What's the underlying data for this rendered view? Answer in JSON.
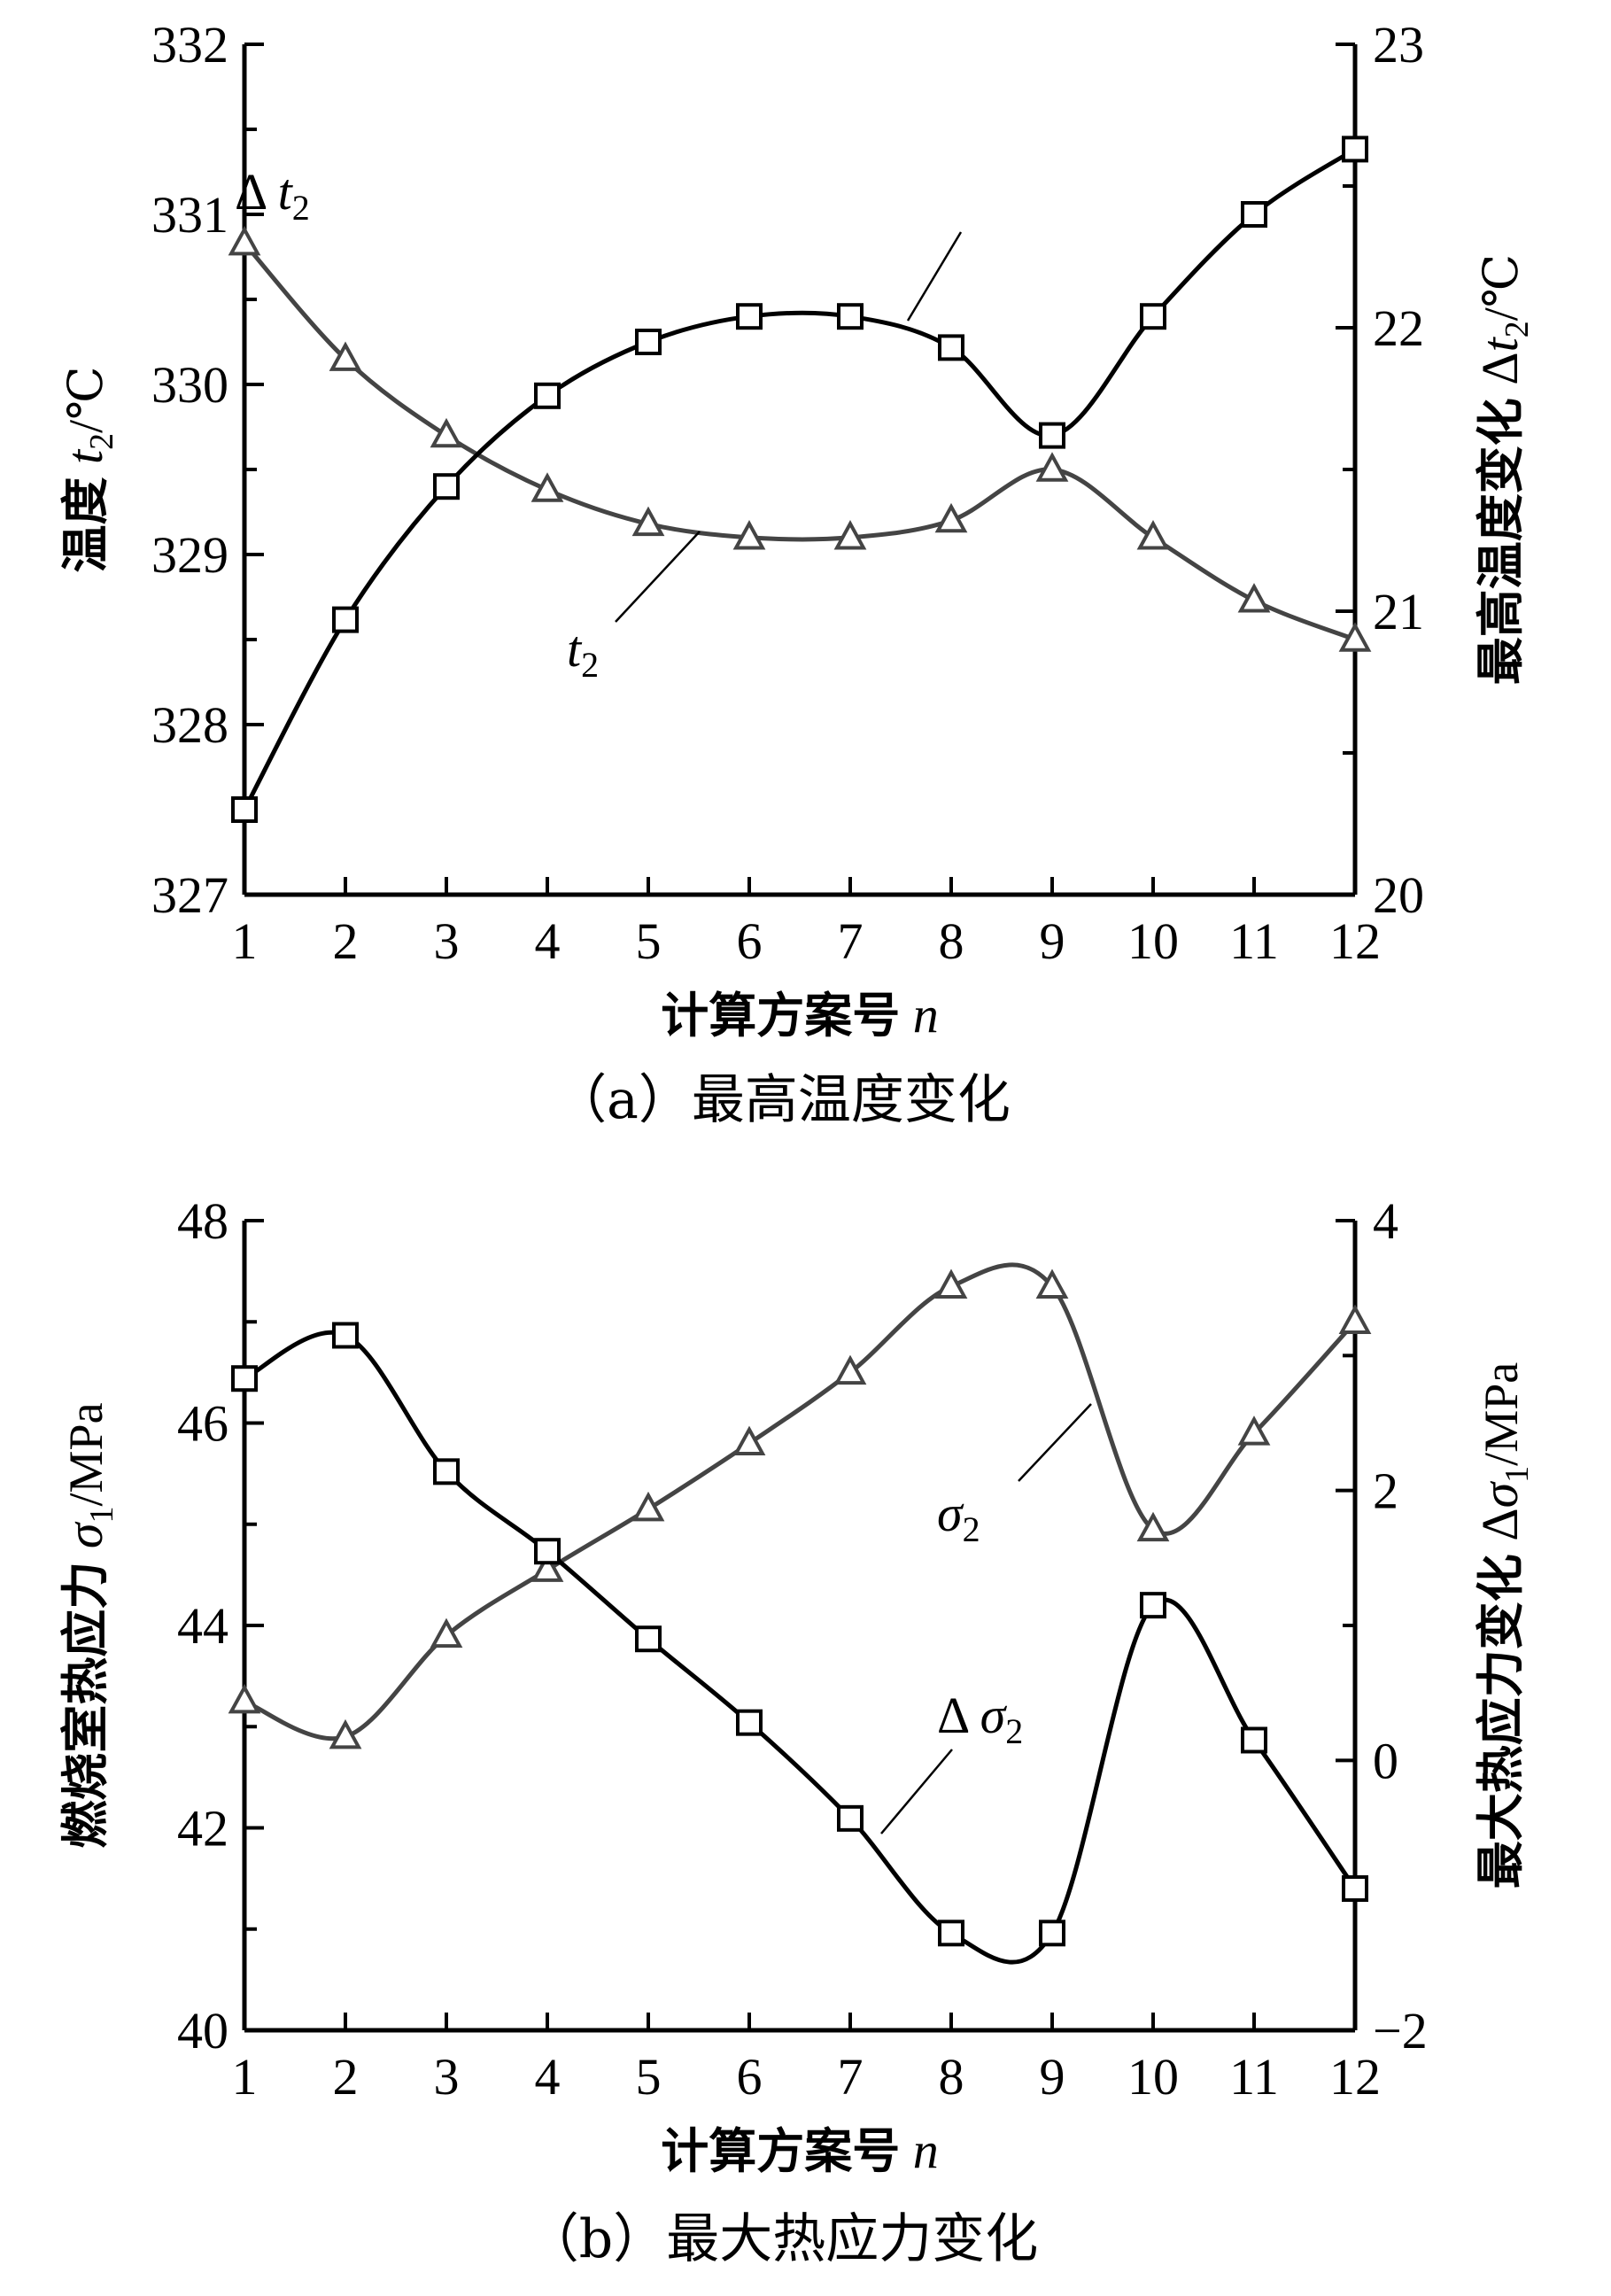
{
  "chart_data": [
    {
      "type": "line",
      "caption": "（a）最高温度变化",
      "xlabel": "计算方案号 n",
      "xlabel_main": "计算方案号",
      "xlabel_var": "n",
      "x": [
        1,
        2,
        3,
        4,
        5,
        6,
        7,
        8,
        9,
        10,
        11,
        12
      ],
      "x_ticks": [
        "1",
        "2",
        "3",
        "4",
        "5",
        "6",
        "7",
        "8",
        "9",
        "10",
        "11",
        "12"
      ],
      "ylabel": "温度 t2/℃",
      "ylabel_main": "温度",
      "ylabel_var": "t",
      "ylabel_sub": "2",
      "ylabel_unit": "/℃",
      "ylim": [
        327,
        332
      ],
      "y_ticks": [
        "327",
        "328",
        "329",
        "330",
        "331",
        "332"
      ],
      "y2label": "最高温度变化 Δt2/℃",
      "y2label_main": "最高温度变化",
      "y2label_delta": "Δ",
      "y2label_var": "t",
      "y2label_sub": "2",
      "y2label_unit": "/℃",
      "y2lim": [
        20,
        23
      ],
      "y2_ticks": [
        "20",
        "21",
        "22",
        "23"
      ],
      "series": [
        {
          "name": "t2",
          "label_main": "t",
          "label_sub": "2",
          "axis": "left",
          "marker": "triangle",
          "color": "#444444",
          "values": [
            330.83,
            330.15,
            329.7,
            329.38,
            329.18,
            329.1,
            329.1,
            329.2,
            329.5,
            329.1,
            328.73,
            328.5
          ]
        },
        {
          "name": "Δt2",
          "label_delta": "Δ",
          "label_main": "t",
          "label_sub": "2",
          "axis": "right",
          "marker": "square",
          "color": "#000000",
          "values": [
            20.3,
            20.97,
            21.44,
            21.76,
            21.95,
            22.04,
            22.04,
            21.93,
            21.62,
            22.04,
            22.4,
            22.63
          ]
        }
      ],
      "grid": false
    },
    {
      "type": "line",
      "caption": "（b）最大热应力变化",
      "xlabel": "计算方案号 n",
      "xlabel_main": "计算方案号",
      "xlabel_var": "n",
      "x": [
        1,
        2,
        3,
        4,
        5,
        6,
        7,
        8,
        9,
        10,
        11,
        12
      ],
      "x_ticks": [
        "1",
        "2",
        "3",
        "4",
        "5",
        "6",
        "7",
        "8",
        "9",
        "10",
        "11",
        "12"
      ],
      "ylabel": "燃烧室热应力 σ1/MPa",
      "ylabel_main": "燃烧室热应力",
      "ylabel_var": "σ",
      "ylabel_sub": "1",
      "ylabel_unit": "/MPa",
      "ylim": [
        40,
        48
      ],
      "y_ticks": [
        "40",
        "42",
        "44",
        "46",
        "48"
      ],
      "y2label": "最大热应力变化 Δσ1/MPa",
      "y2label_main": "最大热应力变化",
      "y2label_delta": "Δ",
      "y2label_var": "σ",
      "y2label_sub": "1",
      "y2label_unit": "/MPa",
      "y2lim": [
        -2,
        4
      ],
      "y2_ticks": [
        "−2",
        "0",
        "2",
        "4"
      ],
      "series": [
        {
          "name": "σ2",
          "label_main": "σ",
          "label_sub": "2",
          "axis": "left",
          "marker": "triangle",
          "color": "#444444",
          "values": [
            43.25,
            42.9,
            43.9,
            44.55,
            45.15,
            45.8,
            46.5,
            47.35,
            47.35,
            44.95,
            45.9,
            47.0
          ]
        },
        {
          "name": "Δσ2",
          "label_delta": "Δ",
          "label_main": "σ",
          "label_sub": "2",
          "axis": "right",
          "marker": "square",
          "color": "#000000",
          "values": [
            2.83,
            3.15,
            2.14,
            1.55,
            0.9,
            0.28,
            -0.43,
            -1.28,
            -1.28,
            1.15,
            0.15,
            -0.95
          ]
        }
      ],
      "grid": false
    }
  ]
}
